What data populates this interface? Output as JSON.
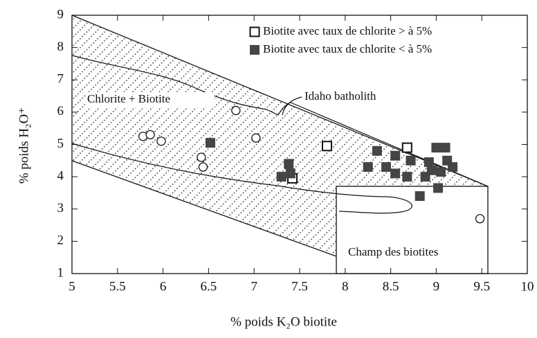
{
  "chart_data": {
    "type": "scatter",
    "xlabel": "% poids K₂O  biotite",
    "ylabel": "% poids H₂O⁺",
    "annotations": [
      "Idaho batholith",
      "Chlorite + Biotite",
      "Champ des biotites"
    ],
    "xlim": [
      5,
      10
    ],
    "xticks": [
      5,
      5.5,
      6,
      6.5,
      7,
      7.5,
      8,
      8.5,
      9,
      9.5,
      10
    ],
    "ylim": [
      1,
      9
    ],
    "yticks": [
      1,
      2,
      3,
      4,
      5,
      6,
      7,
      8,
      9
    ],
    "series": [
      {
        "name": "Biotite avec taux de chlorite > à 5%",
        "marker": "open-square",
        "color": "#111111",
        "x": [
          7.8,
          7.42,
          8.68
        ],
        "y": [
          4.95,
          3.95,
          4.9
        ]
      },
      {
        "name": "Biotite avec taux de chlorite < à 5%",
        "marker": "filled-square",
        "color": "#454545",
        "x": [
          6.52,
          7.38,
          7.3,
          7.4,
          8.25,
          8.35,
          8.45,
          8.55,
          8.55,
          8.68,
          8.72,
          8.82,
          8.88,
          8.92,
          8.95,
          9.0,
          9.05,
          9.1,
          9.12,
          9.18,
          9.02
        ],
        "y": [
          5.05,
          4.4,
          4.0,
          4.1,
          4.3,
          4.8,
          4.3,
          4.65,
          4.1,
          4.0,
          4.5,
          3.4,
          4.0,
          4.45,
          4.2,
          4.9,
          4.15,
          4.9,
          4.5,
          4.3,
          3.65
        ]
      },
      {
        "marker": "open-circle",
        "color": "#111111",
        "x": [
          5.78,
          5.86,
          5.98,
          6.42,
          6.44,
          6.8,
          7.02,
          9.48
        ],
        "y": [
          5.25,
          5.3,
          5.1,
          4.6,
          4.3,
          6.05,
          5.2,
          2.7
        ]
      }
    ]
  }
}
